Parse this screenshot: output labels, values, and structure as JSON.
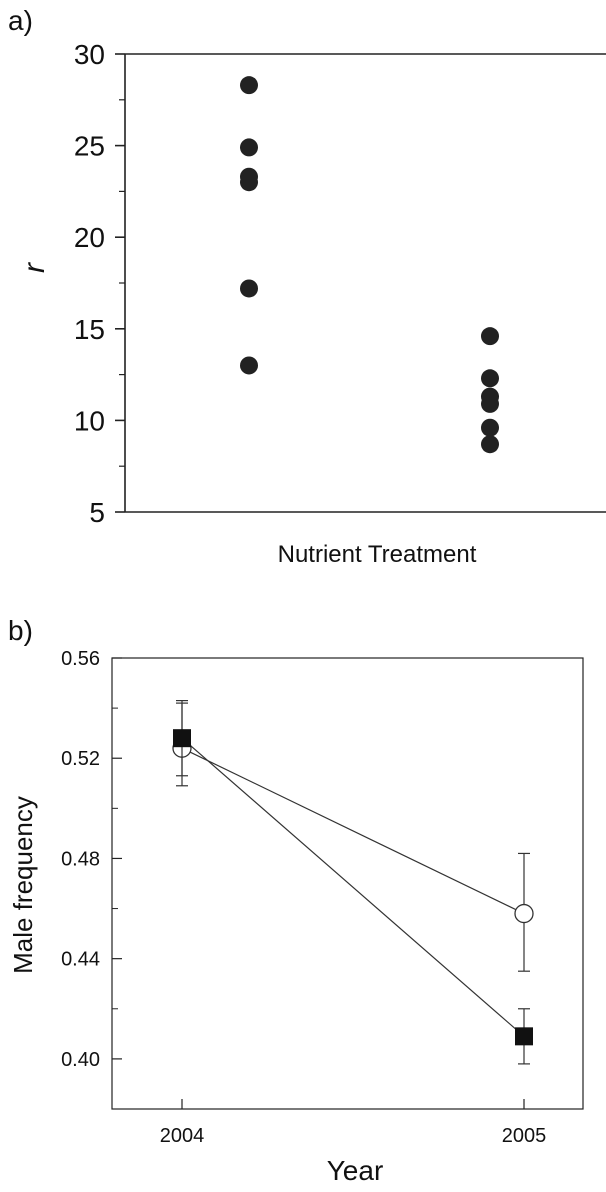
{
  "chart_data": [
    {
      "panel_label": "a)",
      "type": "scatter",
      "xlabel": "Nutrient Treatment",
      "ylabel": "r",
      "ylim": [
        5,
        30
      ],
      "yticks": [
        5,
        10,
        15,
        20,
        25,
        30
      ],
      "grid": false,
      "legend": "none",
      "marker_color": "#222222",
      "series": [
        {
          "category_index": 0,
          "values": [
            28.3,
            24.9,
            23.3,
            23.0,
            17.2,
            13.0
          ]
        },
        {
          "category_index": 1,
          "values": [
            14.6,
            12.3,
            11.3,
            10.9,
            9.6,
            8.7
          ]
        }
      ]
    },
    {
      "panel_label": "b)",
      "type": "line",
      "xlabel": "Year",
      "ylabel": "Male frequency",
      "x": [
        "2004",
        "2005"
      ],
      "ylim": [
        0.38,
        0.56
      ],
      "yticks": [
        "0.40",
        "0.44",
        "0.48",
        "0.52",
        "0.56"
      ],
      "grid": false,
      "legend": "none",
      "line_color": "#333333",
      "series": [
        {
          "marker": "open-circle",
          "values": [
            0.524,
            0.458
          ],
          "error_low": [
            0.509,
            0.435
          ],
          "error_high": [
            0.542,
            0.482
          ]
        },
        {
          "marker": "filled-square",
          "values": [
            0.528,
            0.409
          ],
          "error_low": [
            0.513,
            0.398
          ],
          "error_high": [
            0.543,
            0.42
          ]
        }
      ]
    }
  ]
}
